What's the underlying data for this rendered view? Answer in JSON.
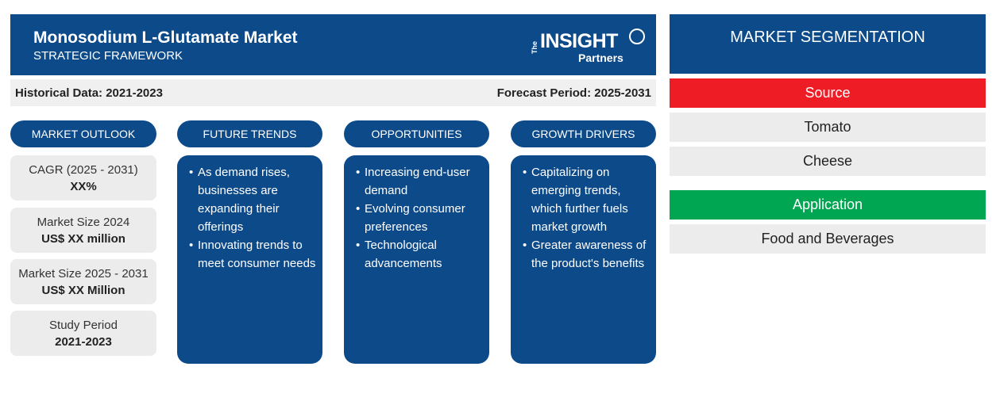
{
  "header": {
    "title": "Monosodium L-Glutamate Market",
    "subtitle": "STRATEGIC FRAMEWORK",
    "logo": {
      "the": "The",
      "brand": "INSIGHT",
      "sub": "Partners"
    }
  },
  "periods": {
    "historical": "Historical Data: 2021-2023",
    "forecast": "Forecast Period: 2025-2031"
  },
  "columns": {
    "outlook": "MARKET OUTLOOK",
    "trends": "FUTURE TRENDS",
    "opportunities": "OPPORTUNITIES",
    "drivers": "GROWTH DRIVERS"
  },
  "outlook": [
    {
      "label": "CAGR (2025 - 2031)",
      "value": "XX%"
    },
    {
      "label": "Market Size 2024",
      "value": "US$ XX million"
    },
    {
      "label": "Market Size 2025 - 2031",
      "value": "US$ XX Million"
    },
    {
      "label": "Study Period",
      "value": "2021-2023"
    }
  ],
  "trends": [
    "As demand rises, businesses are expanding their offerings",
    "Innovating trends to meet consumer needs"
  ],
  "opportunities": [
    "Increasing end-user demand",
    "Evolving consumer preferences",
    "Technological advancements"
  ],
  "drivers": [
    "Capitalizing on emerging trends, which further fuels market growth",
    "Greater awareness of the product's benefits"
  ],
  "segmentation": {
    "title": "MARKET SEGMENTATION",
    "groups": [
      {
        "name": "Source",
        "items": [
          "Tomato",
          "Cheese"
        ]
      },
      {
        "name": "Application",
        "items": [
          "Food and Beverages"
        ]
      }
    ]
  },
  "colors": {
    "primary": "#0d4a8a",
    "source_header": "#ee1c25",
    "application_header": "#00a651",
    "light_gray": "#ececec"
  }
}
